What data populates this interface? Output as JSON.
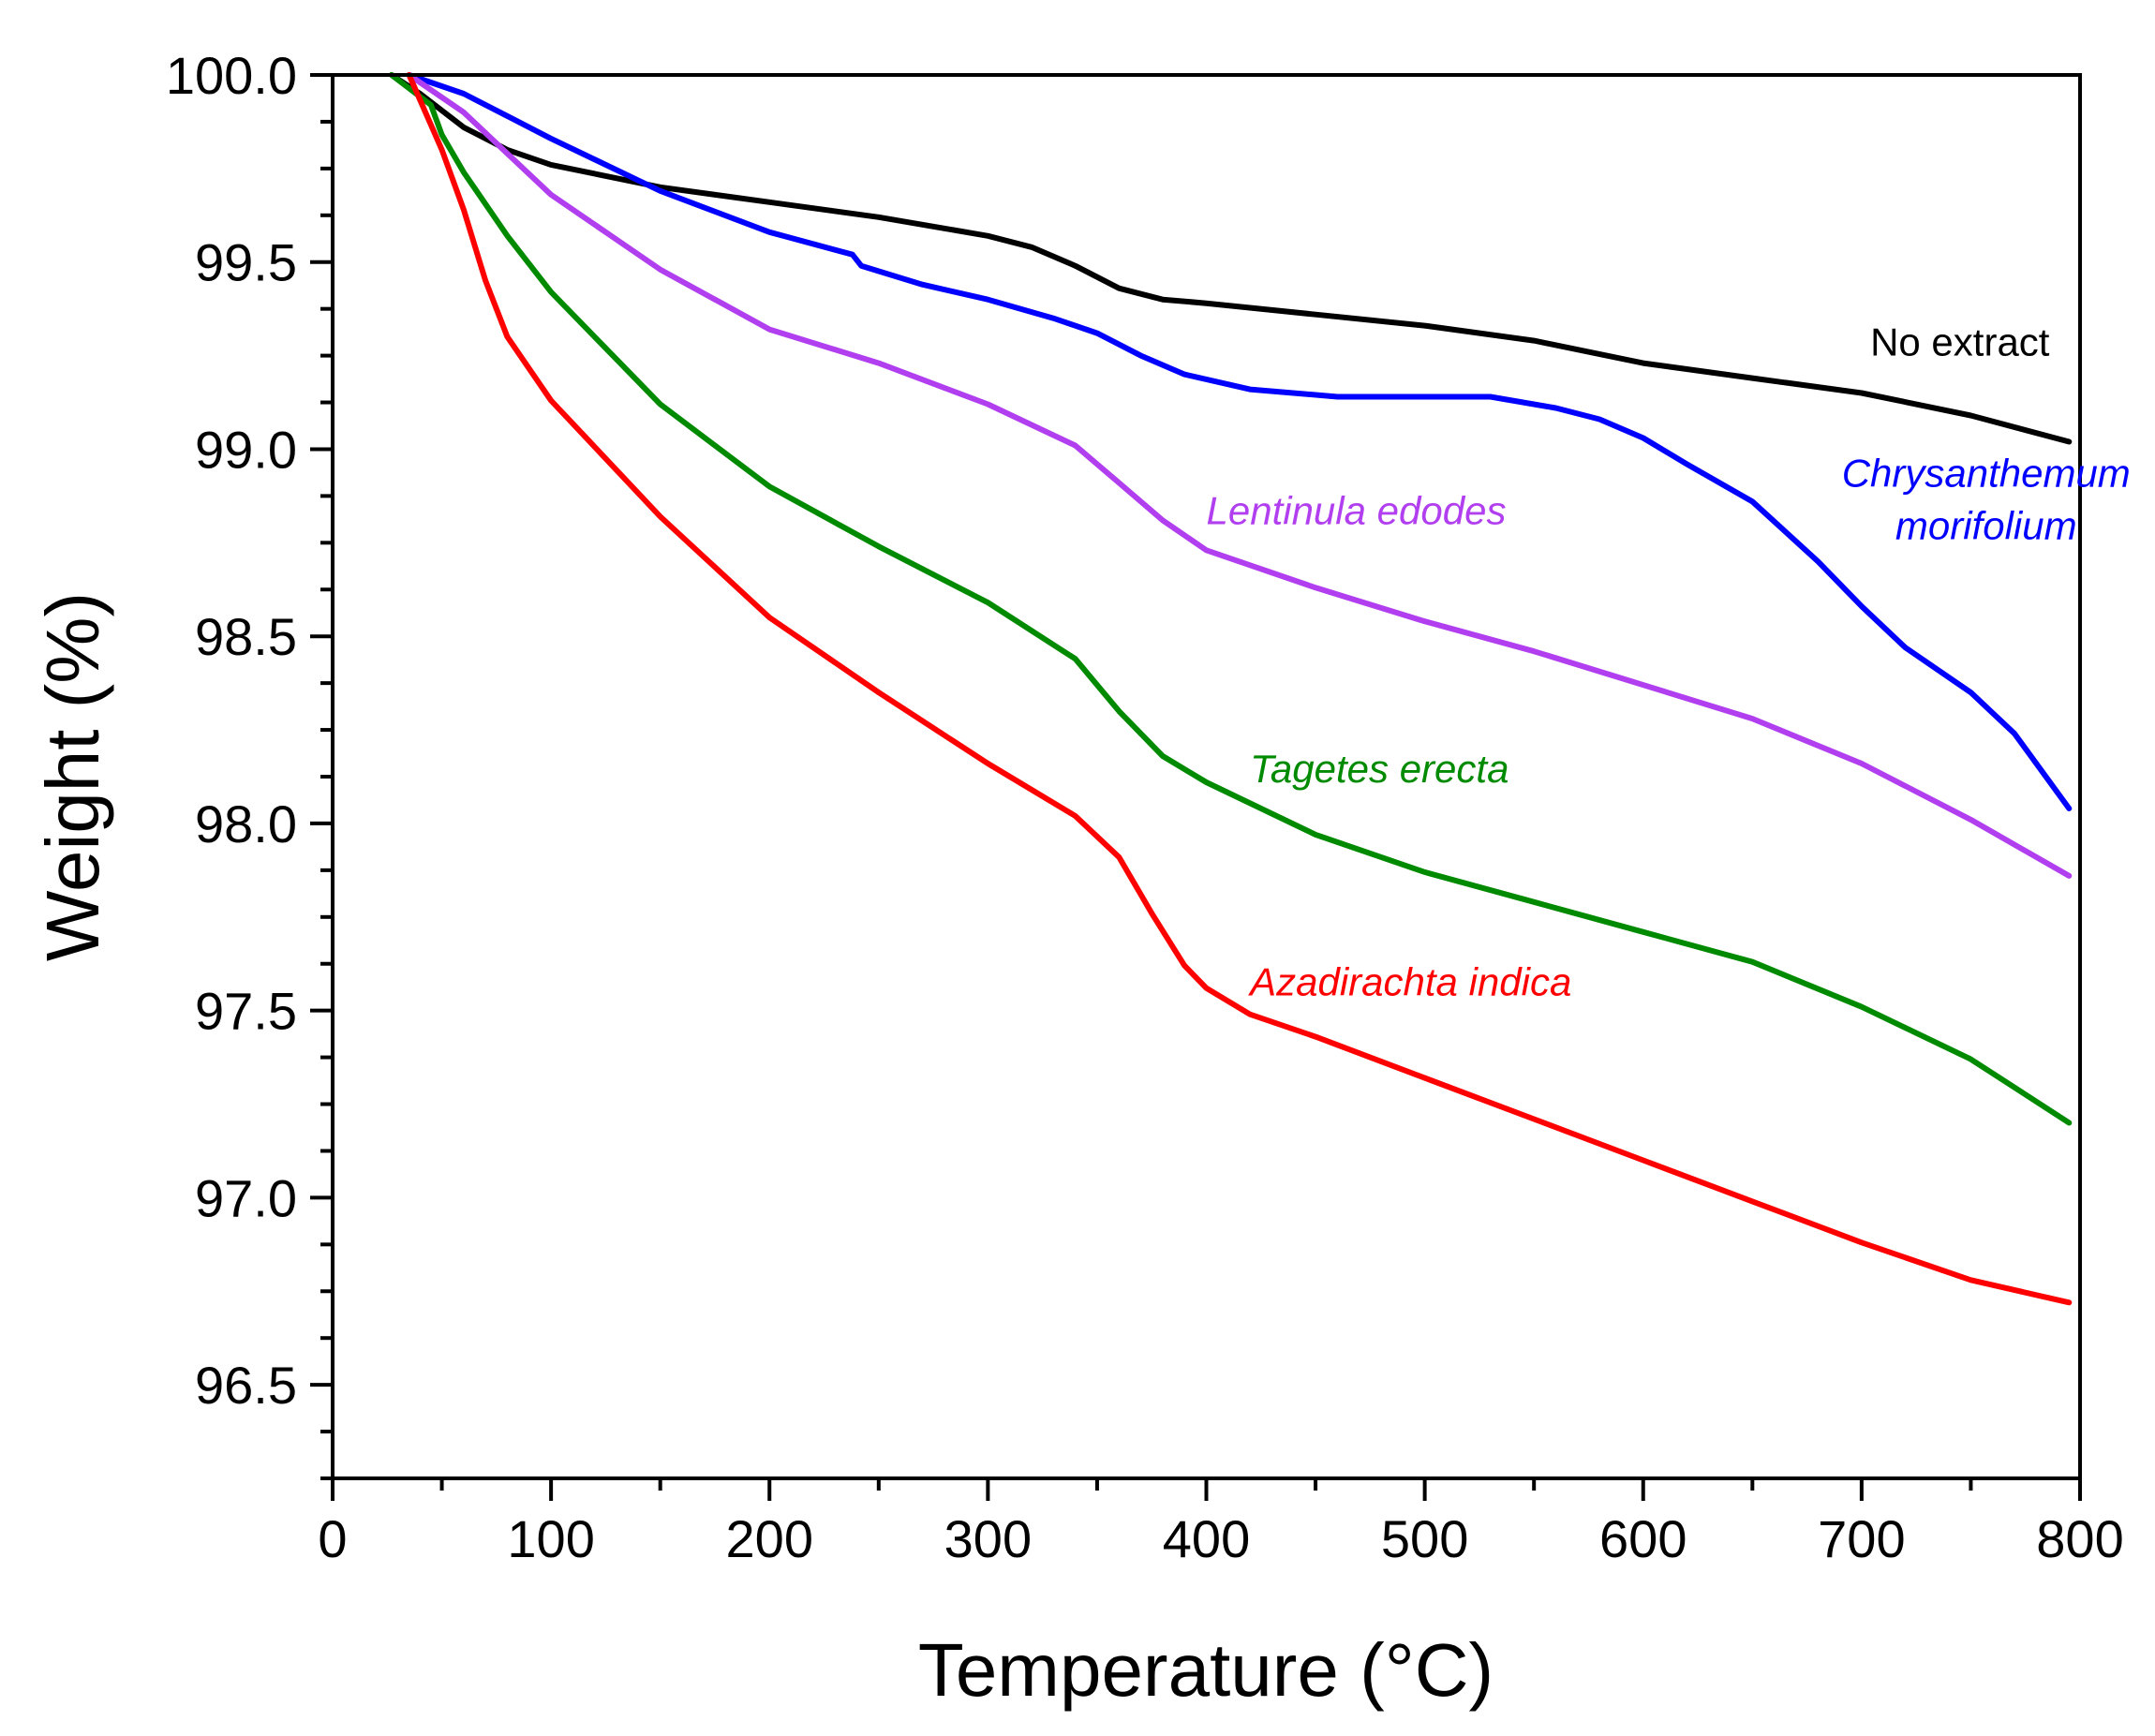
{
  "chart_data": {
    "type": "line",
    "title": "",
    "xlabel": "Temperature (°C)",
    "ylabel": "Weight (%)",
    "xlim": [
      0,
      800
    ],
    "ylim": [
      96.25,
      100.0
    ],
    "xticks": [
      "0",
      "100",
      "200",
      "300",
      "400",
      "500",
      "600",
      "700",
      "800"
    ],
    "yticks": [
      "96.5",
      "97.0",
      "97.5",
      "98.0",
      "98.5",
      "99.0",
      "99.5",
      "100.0"
    ],
    "grid": false,
    "legend": "inline labels",
    "series": [
      {
        "name": "No extract",
        "color": "#000000",
        "italic": false,
        "x": [
          27,
          40,
          60,
          80,
          100,
          150,
          200,
          250,
          280,
          300,
          320,
          340,
          360,
          380,
          400,
          450,
          500,
          550,
          600,
          650,
          700,
          750,
          795
        ],
        "y": [
          100.0,
          99.95,
          99.86,
          99.8,
          99.76,
          99.7,
          99.66,
          99.62,
          99.59,
          99.57,
          99.54,
          99.49,
          99.43,
          99.4,
          99.39,
          99.36,
          99.33,
          99.29,
          99.23,
          99.19,
          99.15,
          99.09,
          99.02
        ]
      },
      {
        "name": "Chrysanthemum morifolium",
        "color": "#0000ff",
        "italic": true,
        "x": [
          35,
          60,
          80,
          100,
          150,
          200,
          238,
          242,
          270,
          300,
          330,
          350,
          370,
          390,
          420,
          460,
          500,
          530,
          560,
          580,
          600,
          620,
          650,
          680,
          700,
          720,
          750,
          770,
          795
        ],
        "y": [
          100.0,
          99.95,
          99.89,
          99.83,
          99.69,
          99.58,
          99.52,
          99.49,
          99.44,
          99.4,
          99.35,
          99.31,
          99.25,
          99.2,
          99.16,
          99.14,
          99.14,
          99.14,
          99.11,
          99.08,
          99.03,
          98.96,
          98.86,
          98.7,
          98.58,
          98.47,
          98.35,
          98.24,
          98.04
        ]
      },
      {
        "name": "Lentinula edodes",
        "color": "#b13ff0",
        "italic": true,
        "x": [
          35,
          60,
          80,
          100,
          150,
          200,
          250,
          300,
          340,
          360,
          380,
          400,
          450,
          500,
          550,
          600,
          650,
          700,
          750,
          795
        ],
        "y": [
          100.0,
          99.9,
          99.79,
          99.68,
          99.48,
          99.32,
          99.23,
          99.12,
          99.01,
          98.91,
          98.81,
          98.73,
          98.63,
          98.54,
          98.46,
          98.37,
          98.28,
          98.16,
          98.01,
          97.86
        ]
      },
      {
        "name": "Tagetes erecta",
        "color": "#008a00",
        "italic": true,
        "x": [
          27,
          45,
          50,
          60,
          80,
          100,
          150,
          200,
          250,
          300,
          340,
          360,
          380,
          400,
          450,
          500,
          550,
          600,
          650,
          700,
          750,
          795
        ],
        "y": [
          100.0,
          99.92,
          99.84,
          99.74,
          99.57,
          99.42,
          99.12,
          98.9,
          98.74,
          98.59,
          98.44,
          98.3,
          98.18,
          98.11,
          97.97,
          97.87,
          97.79,
          97.71,
          97.63,
          97.51,
          97.37,
          97.2
        ]
      },
      {
        "name": "Azadirachta indica",
        "color": "#ff0000",
        "italic": true,
        "x": [
          35,
          50,
          60,
          70,
          80,
          100,
          150,
          200,
          250,
          300,
          340,
          360,
          375,
          390,
          400,
          420,
          450,
          500,
          550,
          600,
          650,
          700,
          750,
          795
        ],
        "y": [
          100.0,
          99.8,
          99.64,
          99.45,
          99.3,
          99.13,
          98.82,
          98.55,
          98.35,
          98.16,
          98.02,
          97.91,
          97.76,
          97.62,
          97.56,
          97.49,
          97.43,
          97.32,
          97.21,
          97.1,
          96.99,
          96.88,
          96.78,
          96.72
        ]
      }
    ],
    "annotations": [
      {
        "series": "No extract",
        "lines": [
          "No extract"
        ],
        "x": 745,
        "y": 99.25,
        "anchor": "middle"
      },
      {
        "series": "Chrysanthemum morifolium",
        "lines": [
          "Chrysanthemum",
          "morifolium"
        ],
        "x": 757,
        "y": 98.9,
        "anchor": "middle"
      },
      {
        "series": "Lentinula edodes",
        "lines": [
          "Lentinula edodes"
        ],
        "x": 400,
        "y": 98.8,
        "anchor": "start"
      },
      {
        "series": "Tagetes erecta",
        "lines": [
          "Tagetes erecta"
        ],
        "x": 420,
        "y": 98.11,
        "anchor": "start"
      },
      {
        "series": "Azadirachta indica",
        "lines": [
          "Azadirachta indica"
        ],
        "x": 420,
        "y": 97.54,
        "anchor": "start"
      }
    ]
  }
}
